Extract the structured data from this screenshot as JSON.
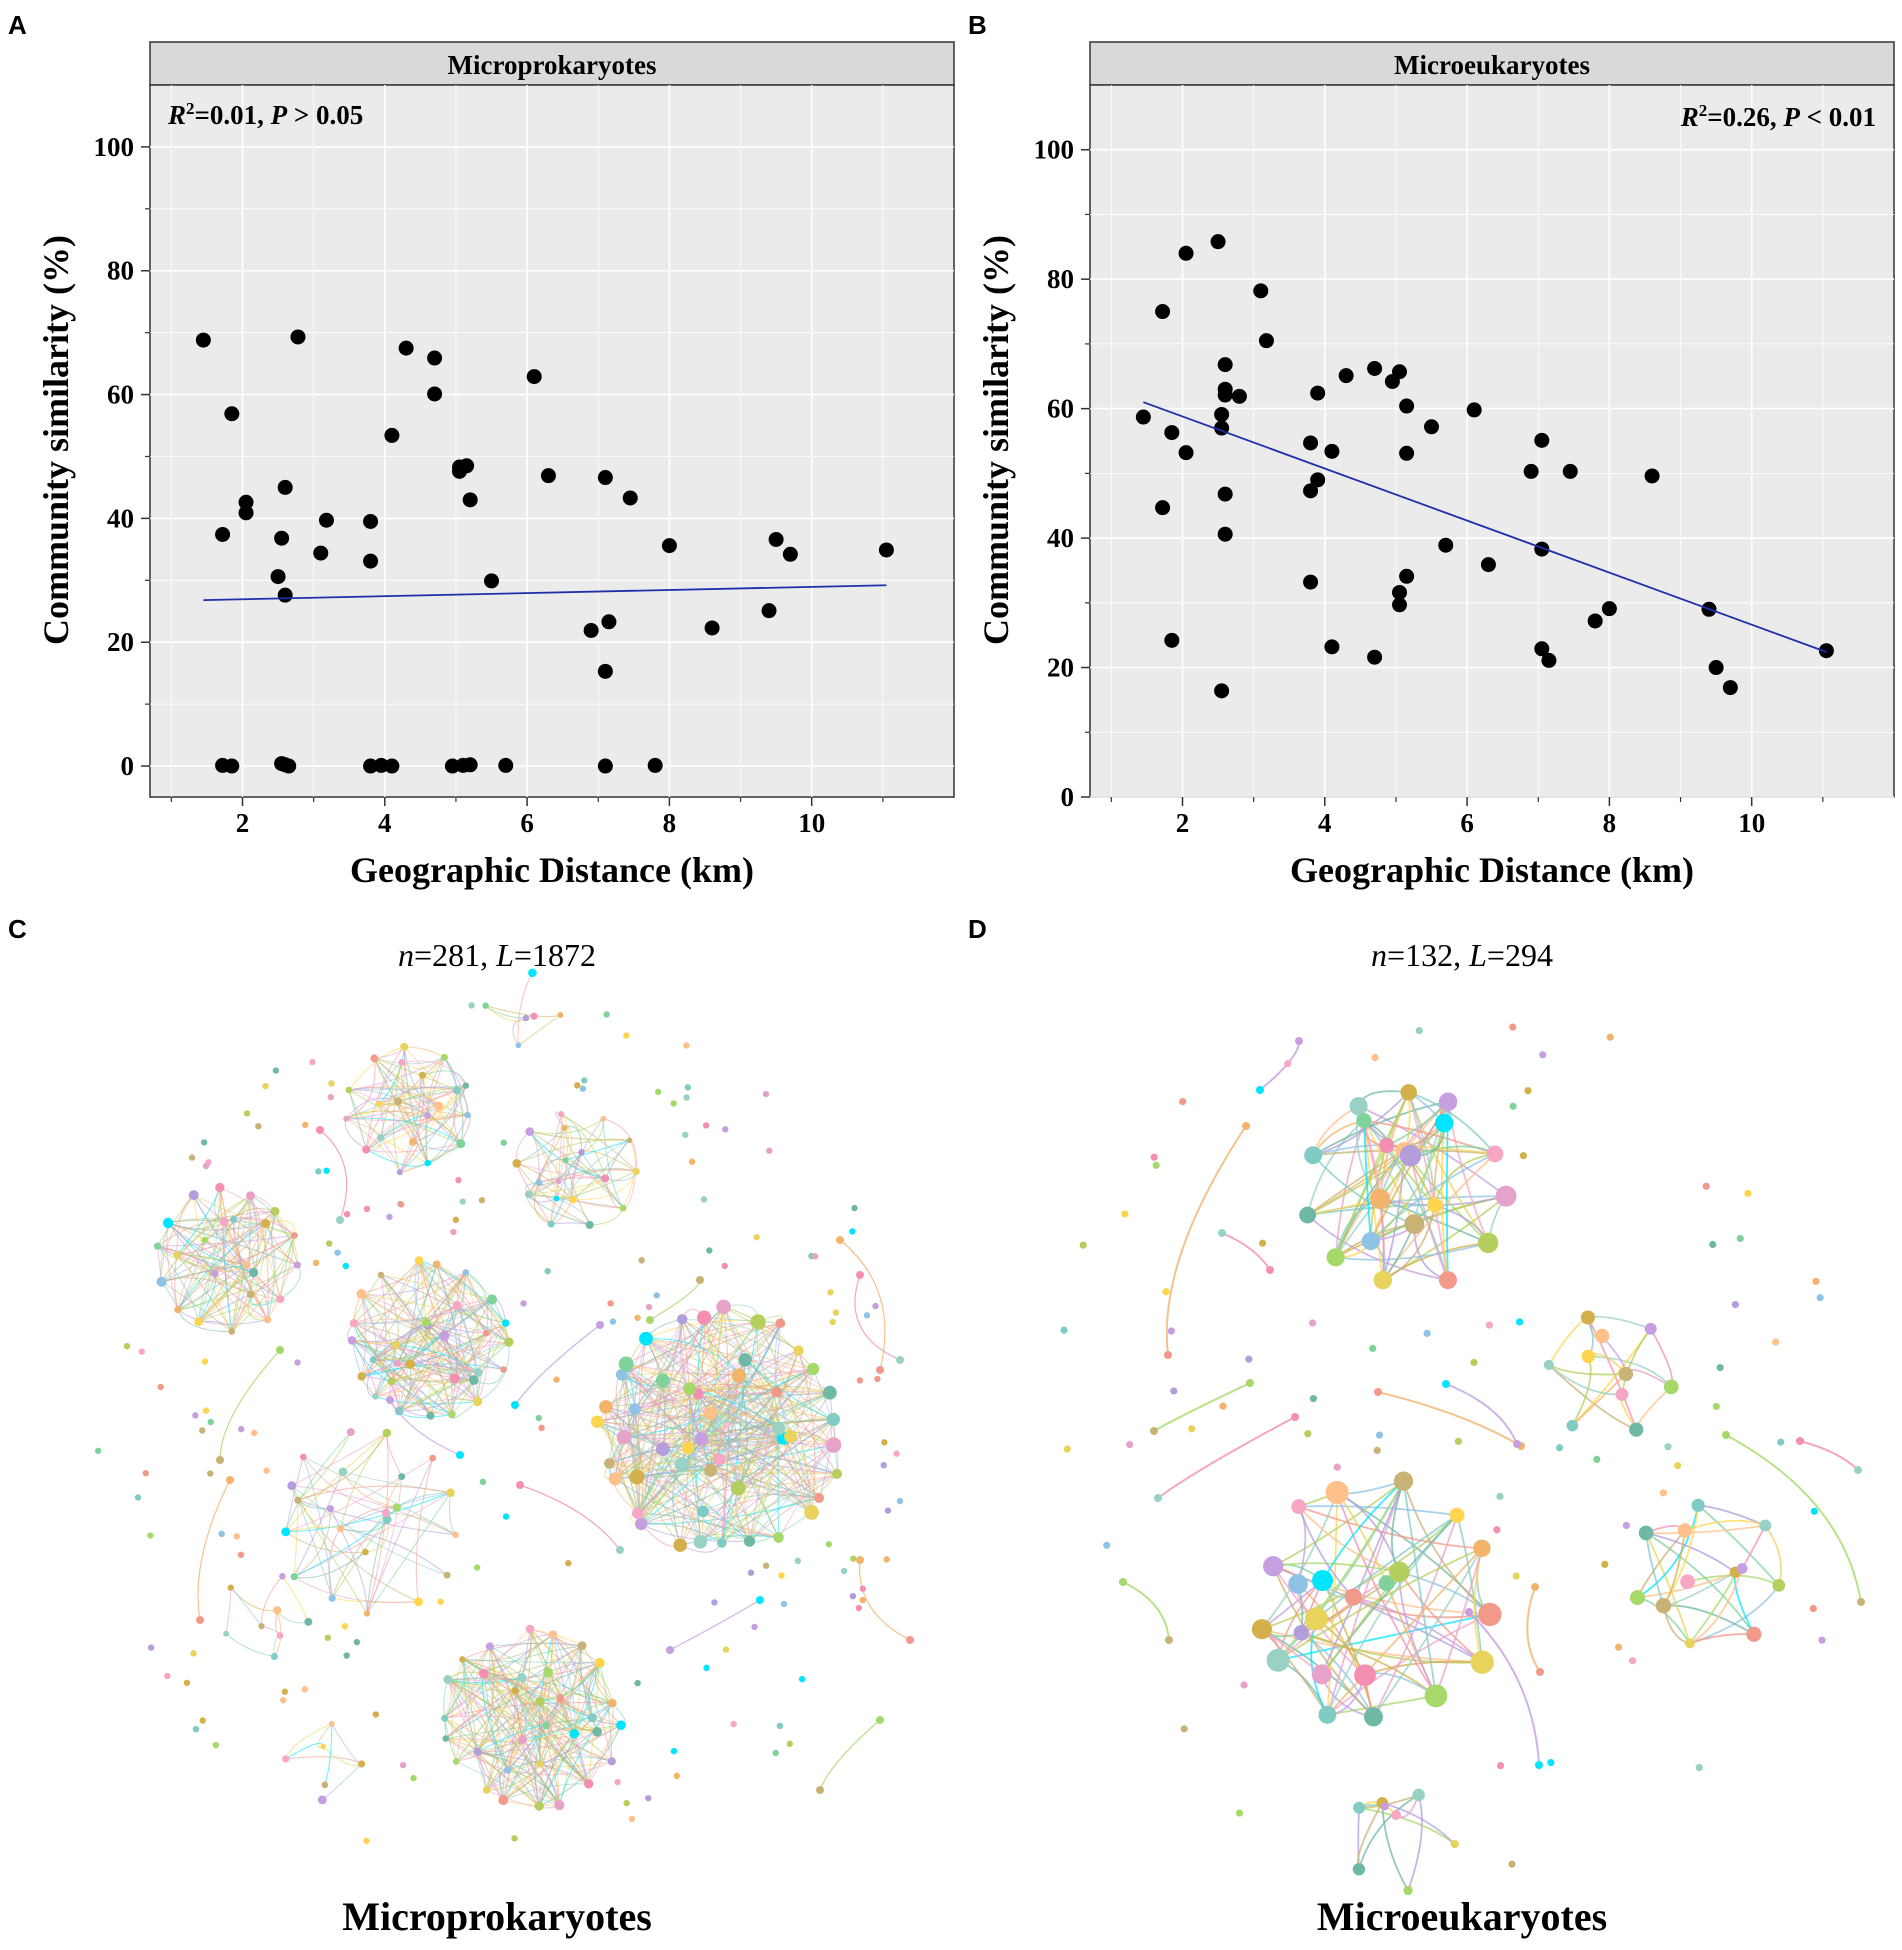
{
  "panel_letters": [
    "A",
    "B",
    "C",
    "D"
  ],
  "chart_data": [
    {
      "id": "A",
      "type": "scatter",
      "title": "Microprokaryotes",
      "annotation": {
        "r_label": "R",
        "r_sup": "2",
        "r_value": "=0.01, ",
        "p_label": "P",
        "p_rel": " > 0.05",
        "position": "top-left"
      },
      "xlabel": "Geographic Distance (km)",
      "ylabel": "Community similarity (%)",
      "xlim": [
        0.7,
        12.0
      ],
      "ylim": [
        -5,
        110
      ],
      "xticks": [
        2,
        4,
        6,
        8,
        10
      ],
      "yticks": [
        0,
        20,
        40,
        60,
        80,
        100
      ],
      "xtick_labels": [
        "2",
        "4",
        "6",
        "8",
        "10"
      ],
      "ytick_labels": [
        "0",
        "20",
        "40",
        "60",
        "80",
        "100"
      ],
      "grid": true,
      "points": [
        [
          1.45,
          68.8
        ],
        [
          1.72,
          37.4
        ],
        [
          1.85,
          56.9
        ],
        [
          2.05,
          42.6
        ],
        [
          2.05,
          40.9
        ],
        [
          2.5,
          30.6
        ],
        [
          2.55,
          36.8
        ],
        [
          2.6,
          45.0
        ],
        [
          2.6,
          27.6
        ],
        [
          2.78,
          69.3
        ],
        [
          3.1,
          34.4
        ],
        [
          3.18,
          39.7
        ],
        [
          3.8,
          39.5
        ],
        [
          3.8,
          33.1
        ],
        [
          4.1,
          53.4
        ],
        [
          4.3,
          67.5
        ],
        [
          4.7,
          65.9
        ],
        [
          4.7,
          60.1
        ],
        [
          5.05,
          48.3
        ],
        [
          5.05,
          47.6
        ],
        [
          5.15,
          48.5
        ],
        [
          5.2,
          43.0
        ],
        [
          5.5,
          29.9
        ],
        [
          6.1,
          62.9
        ],
        [
          6.3,
          46.9
        ],
        [
          6.9,
          21.9
        ],
        [
          7.1,
          46.6
        ],
        [
          7.1,
          15.3
        ],
        [
          7.15,
          23.3
        ],
        [
          7.45,
          43.3
        ],
        [
          8.0,
          35.6
        ],
        [
          8.6,
          22.3
        ],
        [
          9.4,
          25.1
        ],
        [
          9.5,
          36.6
        ],
        [
          9.7,
          34.2
        ],
        [
          11.05,
          34.9
        ],
        [
          1.72,
          0.1
        ],
        [
          1.85,
          0.0
        ],
        [
          2.55,
          0.4
        ],
        [
          2.6,
          0.2
        ],
        [
          2.65,
          0.0
        ],
        [
          3.8,
          0.0
        ],
        [
          3.95,
          0.1
        ],
        [
          4.1,
          0.0
        ],
        [
          4.95,
          0.0
        ],
        [
          5.1,
          0.1
        ],
        [
          5.2,
          0.2
        ],
        [
          5.7,
          0.1
        ],
        [
          7.1,
          0.0
        ],
        [
          7.8,
          0.1
        ]
      ],
      "fit_line": {
        "x": [
          1.45,
          11.05
        ],
        "y": [
          26.8,
          29.2
        ],
        "color": "#1f2eaa"
      }
    },
    {
      "id": "B",
      "type": "scatter",
      "title": "Microeukaryotes",
      "annotation": {
        "r_label": "R",
        "r_sup": "2",
        "r_value": "=0.26, ",
        "p_label": "P",
        "p_rel": " < 0.01",
        "position": "top-right"
      },
      "xlabel": "Geographic Distance (km)",
      "ylabel": "Community similarity (%)",
      "xlim": [
        0.7,
        12.0
      ],
      "ylim": [
        0,
        110
      ],
      "xticks": [
        2,
        4,
        6,
        8,
        10
      ],
      "yticks": [
        0,
        20,
        40,
        60,
        80,
        100
      ],
      "xtick_labels": [
        "2",
        "4",
        "6",
        "8",
        "10"
      ],
      "ytick_labels": [
        "0",
        "20",
        "40",
        "60",
        "80",
        "100"
      ],
      "grid": true,
      "points": [
        [
          1.45,
          58.7
        ],
        [
          1.72,
          75.0
        ],
        [
          1.72,
          44.7
        ],
        [
          1.85,
          56.3
        ],
        [
          1.85,
          24.2
        ],
        [
          2.05,
          84.0
        ],
        [
          2.05,
          53.2
        ],
        [
          2.5,
          85.8
        ],
        [
          2.55,
          59.1
        ],
        [
          2.55,
          57.0
        ],
        [
          2.55,
          16.4
        ],
        [
          2.6,
          66.8
        ],
        [
          2.6,
          63.0
        ],
        [
          2.6,
          62.1
        ],
        [
          2.6,
          46.8
        ],
        [
          2.6,
          40.6
        ],
        [
          2.8,
          61.9
        ],
        [
          3.1,
          78.2
        ],
        [
          3.18,
          70.5
        ],
        [
          3.8,
          54.7
        ],
        [
          3.8,
          47.3
        ],
        [
          3.8,
          33.2
        ],
        [
          3.9,
          62.4
        ],
        [
          3.9,
          49.0
        ],
        [
          4.1,
          53.4
        ],
        [
          4.1,
          23.2
        ],
        [
          4.3,
          65.1
        ],
        [
          4.7,
          66.2
        ],
        [
          4.7,
          21.6
        ],
        [
          4.95,
          64.2
        ],
        [
          5.05,
          65.7
        ],
        [
          5.05,
          31.6
        ],
        [
          5.05,
          29.7
        ],
        [
          5.15,
          60.4
        ],
        [
          5.15,
          53.1
        ],
        [
          5.15,
          34.1
        ],
        [
          5.5,
          57.2
        ],
        [
          5.7,
          38.9
        ],
        [
          6.1,
          59.8
        ],
        [
          6.3,
          35.9
        ],
        [
          6.9,
          50.3
        ],
        [
          7.05,
          55.1
        ],
        [
          7.05,
          38.3
        ],
        [
          7.05,
          22.9
        ],
        [
          7.15,
          21.1
        ],
        [
          7.45,
          50.3
        ],
        [
          7.8,
          27.2
        ],
        [
          8.0,
          29.1
        ],
        [
          8.6,
          49.6
        ],
        [
          9.4,
          29.0
        ],
        [
          9.5,
          20.0
        ],
        [
          9.7,
          16.9
        ],
        [
          11.05,
          22.6
        ]
      ],
      "fit_line": {
        "x": [
          1.45,
          11.05
        ],
        "y": [
          61.0,
          22.4
        ],
        "color": "#1f2eaa"
      }
    }
  ],
  "networks": [
    {
      "id": "C",
      "stats": {
        "n_label": "n",
        "n_value": "=281, ",
        "l_label": "L",
        "l_value": "=1872"
      },
      "name": "Microprokaryotes",
      "total_nodes": 281,
      "total_links": 1872
    },
    {
      "id": "D",
      "stats": {
        "n_label": "n",
        "n_value": "=132, ",
        "l_label": "L",
        "l_value": "=294"
      },
      "name": "Microeukaryotes",
      "total_nodes": 132,
      "total_links": 294
    }
  ],
  "palette": [
    "#e6a3c9",
    "#9ad1c5",
    "#f2b46b",
    "#b5cf5e",
    "#d4b04a",
    "#8fc3e6",
    "#f29a8a",
    "#c59fe0",
    "#7fd39a",
    "#e8d35d",
    "#f7a6c4",
    "#00e5ff",
    "#a6d96a",
    "#ffc08a",
    "#b39ddb",
    "#70b8a6",
    "#c8b276",
    "#f48fb1",
    "#80cbc4",
    "#ffd54f"
  ]
}
